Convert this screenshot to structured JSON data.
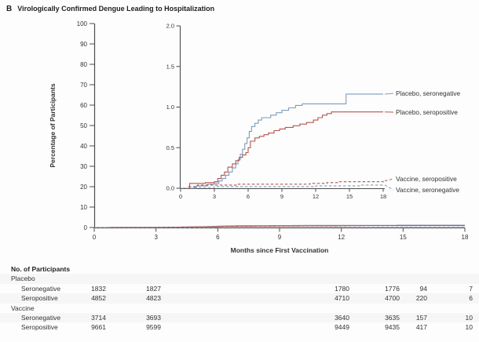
{
  "figure": {
    "panel_letter": "B",
    "title": "Virologically Confirmed Dengue Leading to Hospitalization"
  },
  "colors": {
    "placebo_blue": "#7e9cbe",
    "placebo_red": "#b3564e",
    "axis": "#4c4c4c",
    "text": "#333333"
  },
  "chart_data": {
    "type": "line",
    "subtype": "kaplan-meier-cumulative-incidence-with-inset",
    "title": "Virologically Confirmed Dengue Leading to Hospitalization",
    "xlabel": "Months since First Vaccination",
    "ylabel": "Percentage of Participants",
    "legend": "inline-right-of-inset",
    "grid": false,
    "main_axis": {
      "xlim": [
        0,
        18
      ],
      "ylim": [
        0,
        100
      ],
      "xticks": [
        0,
        3,
        6,
        9,
        12,
        15,
        18
      ],
      "yticks": [
        0,
        10,
        20,
        30,
        40,
        50,
        60,
        70,
        80,
        90,
        100
      ]
    },
    "inset_axis": {
      "xlim": [
        0,
        18
      ],
      "ylim": [
        0,
        2.0
      ],
      "xticks": [
        0,
        3,
        6,
        9,
        12,
        15,
        18
      ],
      "yticks": [
        0,
        0.5,
        1.0,
        1.5,
        2.0
      ],
      "ytick_labels": [
        "0.0",
        "0.5",
        "1.0",
        "1.5",
        "2.0"
      ]
    },
    "series": [
      {
        "name": "Placebo, seronegative",
        "color": "#7e9cbe",
        "dashed": false,
        "points": [
          [
            0,
            0
          ],
          [
            1.4,
            0.03
          ],
          [
            2.4,
            0.05
          ],
          [
            3.0,
            0.06
          ],
          [
            3.4,
            0.09
          ],
          [
            3.7,
            0.12
          ],
          [
            4.0,
            0.16
          ],
          [
            4.3,
            0.2
          ],
          [
            4.6,
            0.25
          ],
          [
            4.9,
            0.3
          ],
          [
            5.1,
            0.35
          ],
          [
            5.3,
            0.42
          ],
          [
            5.5,
            0.48
          ],
          [
            5.7,
            0.55
          ],
          [
            5.9,
            0.62
          ],
          [
            6.1,
            0.7
          ],
          [
            6.3,
            0.76
          ],
          [
            6.6,
            0.8
          ],
          [
            6.9,
            0.84
          ],
          [
            7.2,
            0.87
          ],
          [
            8.0,
            0.9
          ],
          [
            8.5,
            0.93
          ],
          [
            9.0,
            0.96
          ],
          [
            9.6,
            0.99
          ],
          [
            10.2,
            1.02
          ],
          [
            10.8,
            1.04
          ],
          [
            14.6,
            1.04
          ],
          [
            14.7,
            1.16
          ],
          [
            18,
            1.16
          ]
        ]
      },
      {
        "name": "Placebo, seropositive",
        "color": "#b3564e",
        "dashed": false,
        "points": [
          [
            0,
            0
          ],
          [
            0.8,
            0.06
          ],
          [
            2.2,
            0.07
          ],
          [
            3.0,
            0.08
          ],
          [
            3.3,
            0.12
          ],
          [
            3.6,
            0.16
          ],
          [
            3.9,
            0.2
          ],
          [
            4.2,
            0.26
          ],
          [
            4.6,
            0.3
          ],
          [
            4.9,
            0.34
          ],
          [
            5.2,
            0.38
          ],
          [
            5.5,
            0.41
          ],
          [
            5.8,
            0.44
          ],
          [
            6.0,
            0.5
          ],
          [
            6.2,
            0.58
          ],
          [
            6.6,
            0.62
          ],
          [
            7.0,
            0.64
          ],
          [
            7.4,
            0.66
          ],
          [
            7.8,
            0.68
          ],
          [
            8.3,
            0.71
          ],
          [
            8.8,
            0.73
          ],
          [
            9.3,
            0.75
          ],
          [
            10.0,
            0.77
          ],
          [
            10.6,
            0.79
          ],
          [
            11.2,
            0.81
          ],
          [
            11.8,
            0.84
          ],
          [
            12.2,
            0.87
          ],
          [
            12.6,
            0.9
          ],
          [
            13.0,
            0.92
          ],
          [
            13.4,
            0.94
          ],
          [
            18,
            0.94
          ]
        ]
      },
      {
        "name": "Vaccine, seropositive",
        "color": "#b3564e",
        "dashed": true,
        "points": [
          [
            0,
            0
          ],
          [
            0.7,
            0.02
          ],
          [
            1.5,
            0.04
          ],
          [
            5.0,
            0.05
          ],
          [
            9.0,
            0.05
          ],
          [
            11.5,
            0.06
          ],
          [
            13.0,
            0.07
          ],
          [
            14.0,
            0.08
          ],
          [
            18,
            0.09
          ]
        ]
      },
      {
        "name": "Vaccine, seronegative",
        "color": "#7e9cbe",
        "dashed": true,
        "points": [
          [
            0,
            0
          ],
          [
            1.2,
            0.01
          ],
          [
            3.0,
            0.02
          ],
          [
            8.0,
            0.02
          ],
          [
            12.0,
            0.03
          ],
          [
            14.5,
            0.03
          ],
          [
            16.0,
            0.04
          ],
          [
            18,
            0.04
          ]
        ]
      }
    ]
  },
  "participants_table": {
    "title": "No. of Participants",
    "groups": [
      {
        "label": "Placebo",
        "rows": [
          {
            "label": "Seronegative",
            "values": [
              "1832",
              "1827",
              "1780",
              "1776",
              "94",
              "7"
            ]
          },
          {
            "label": "Seropositive",
            "values": [
              "4852",
              "4823",
              "4710",
              "4700",
              "220",
              "6"
            ]
          }
        ]
      },
      {
        "label": "Vaccine",
        "rows": [
          {
            "label": "Seronegative",
            "values": [
              "3714",
              "3693",
              "3640",
              "3635",
              "157",
              "10"
            ]
          },
          {
            "label": "Seropositive",
            "values": [
              "9661",
              "9599",
              "9449",
              "9435",
              "417",
              "10"
            ]
          }
        ]
      }
    ]
  }
}
